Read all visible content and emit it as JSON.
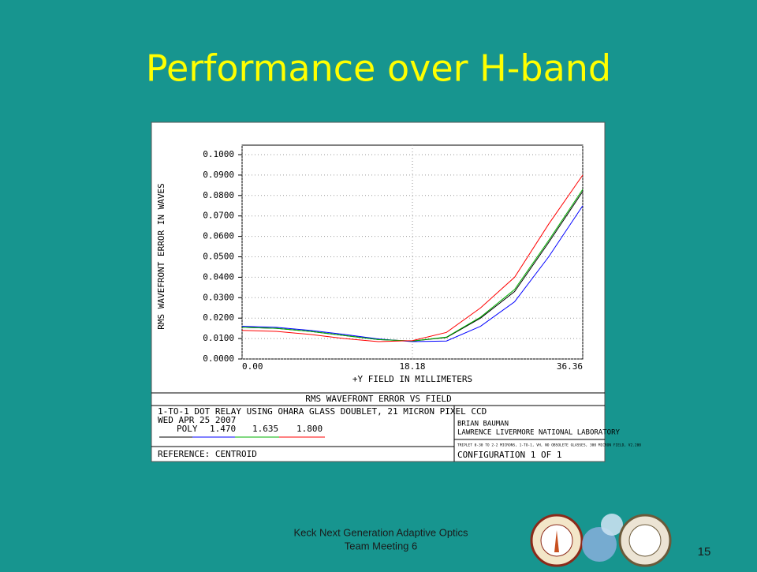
{
  "slide_title": "Performance over H-band",
  "footer": [
    "Keck Next Generation Adaptive Optics",
    "Team Meeting 6"
  ],
  "page_number": "15",
  "chart_data": {
    "type": "line",
    "title": "RMS WAVEFRONT ERROR VS FIELD",
    "xlabel": "+Y FIELD IN MILLIMETERS",
    "ylabel": "RMS WAVEFRONT ERROR IN WAVES",
    "x": [
      0,
      3.636,
      7.272,
      10.908,
      14.544,
      18.18,
      21.816,
      25.452,
      29.088,
      32.724,
      36.36
    ],
    "series": [
      {
        "name": "POLY",
        "color": "#000000",
        "values": [
          0.0155,
          0.015,
          0.0135,
          0.0115,
          0.0095,
          0.0088,
          0.0105,
          0.02,
          0.033,
          0.057,
          0.082
        ]
      },
      {
        "name": "1.470",
        "color": "#0000ff",
        "values": [
          0.016,
          0.0155,
          0.014,
          0.012,
          0.0098,
          0.0085,
          0.0088,
          0.016,
          0.028,
          0.05,
          0.075
        ]
      },
      {
        "name": "1.635",
        "color": "#00b000",
        "values": [
          0.0155,
          0.015,
          0.0135,
          0.0115,
          0.0095,
          0.0088,
          0.0107,
          0.0205,
          0.034,
          0.058,
          0.083
        ]
      },
      {
        "name": "1.800",
        "color": "#ff0000",
        "values": [
          0.014,
          0.0135,
          0.012,
          0.01,
          0.0085,
          0.009,
          0.013,
          0.025,
          0.04,
          0.066,
          0.09
        ]
      }
    ],
    "xlim": [
      0,
      36.36
    ],
    "xticks": [
      {
        "value": 0,
        "label": "0.00"
      },
      18.18,
      36.36
    ],
    "ylim": [
      0,
      0.1
    ],
    "yticks": [
      {
        "value": 0,
        "label": "0.0000"
      },
      {
        "value": 0.01,
        "label": "0.0100"
      },
      {
        "value": 0.02,
        "label": "0.0200"
      },
      {
        "value": 0.03,
        "label": "0.0300"
      },
      {
        "value": 0.04,
        "label": "0.0400"
      },
      {
        "value": 0.05,
        "label": "0.0500"
      },
      {
        "value": 0.06,
        "label": "0.0600"
      },
      {
        "value": 0.07,
        "label": "0.0700"
      },
      {
        "value": 0.08,
        "label": "0.0800"
      },
      {
        "value": 0.09,
        "label": "0.0900"
      },
      {
        "value": 0.1,
        "label": "0.1000"
      }
    ],
    "grid": true,
    "info": {
      "description": "1-TO-1 DOT RELAY USING OHARA GLASS DOUBLET, 21 MICRON PIXEL CCD",
      "date": "WED APR 25 2007",
      "reference": "REFERENCE: CENTROID",
      "author": "BRIAN BAUMAN",
      "lab": "LAWRENCE LIVERMORE NATIONAL LABORATORY",
      "file": "TRIPLET 0-30 TO 2-2 MICRONS, 1-TO-1, VH, NO OBSOLETE GLASSES, 300 MICRON FIELD, V2.200",
      "configuration": "CONFIGURATION 1 OF 1"
    }
  }
}
